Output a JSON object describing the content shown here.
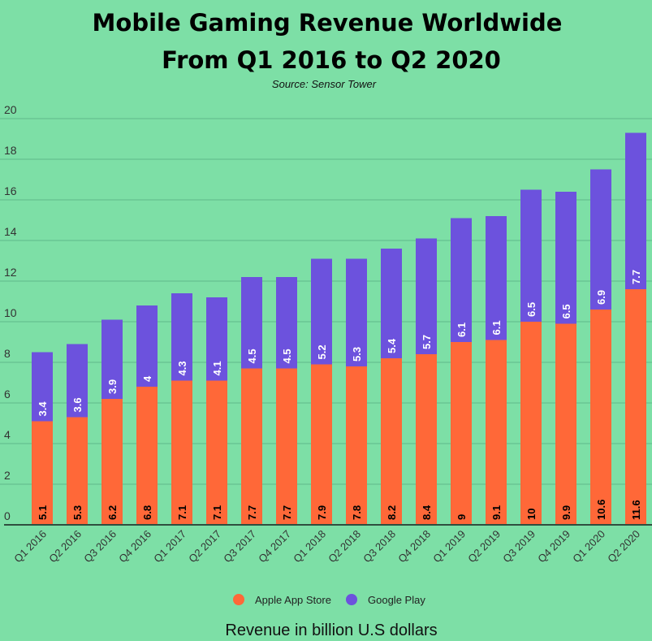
{
  "chart_data": {
    "type": "bar",
    "stacked": true,
    "title": "Mobile Gaming Revenue Worldwide",
    "title_line2": "From Q1 2016 to Q2 2020",
    "subtitle": "Source: Sensor Tower",
    "xlabel": "Revenue in billion U.S dollars",
    "ylabel": "",
    "ylim": [
      0,
      20
    ],
    "yticks": [
      0,
      2,
      4,
      6,
      8,
      10,
      12,
      14,
      16,
      18,
      20
    ],
    "grid": true,
    "legend_position": "bottom",
    "categories": [
      "Q1 2016",
      "Q2 2016",
      "Q3 2016",
      "Q4 2016",
      "Q1 2017",
      "Q2 2017",
      "Q3 2017",
      "Q4 2017",
      "Q1 2018",
      "Q2 2018",
      "Q3 2018",
      "Q4 2018",
      "Q1 2019",
      "Q2 2019",
      "Q3 2019",
      "Q4 2019",
      "Q1 2020",
      "Q2 2020"
    ],
    "series": [
      {
        "name": "Apple App Store",
        "color": "#ff6838",
        "label_color": "#000000",
        "values": [
          5.1,
          5.3,
          6.2,
          6.8,
          7.1,
          7.1,
          7.7,
          7.7,
          7.9,
          7.8,
          8.2,
          8.4,
          9,
          9.1,
          10,
          9.9,
          10.6,
          11.6
        ]
      },
      {
        "name": "Google Play",
        "color": "#6c52dd",
        "label_color": "#ffffff",
        "values": [
          3.4,
          3.6,
          3.9,
          4,
          4.3,
          4.1,
          4.5,
          4.5,
          5.2,
          5.3,
          5.4,
          5.7,
          6.1,
          6.1,
          6.5,
          6.5,
          6.9,
          7.7
        ]
      }
    ]
  }
}
